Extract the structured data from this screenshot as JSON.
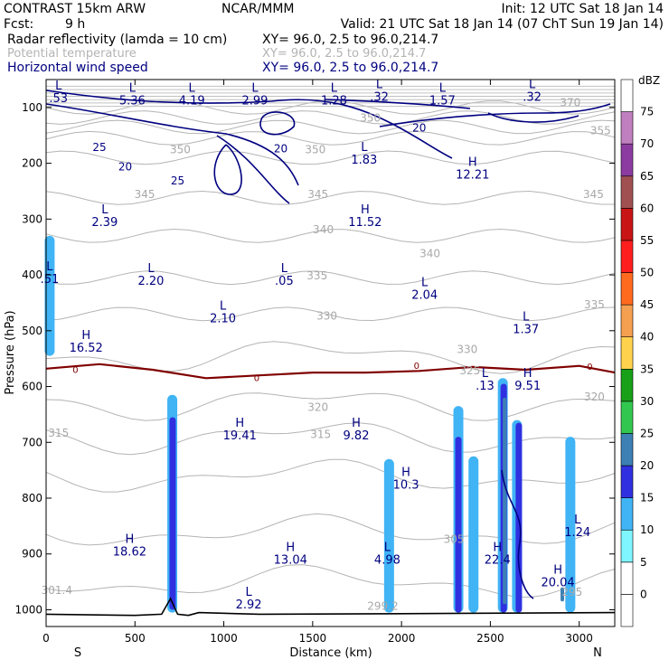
{
  "header": {
    "model": "CONTRAST 15km ARW",
    "org": "NCAR/MMM",
    "init": "Init: 12 UTC Sat 18 Jan 14",
    "fcst_label": "Fcst:",
    "fcst_value": "9 h",
    "valid": "Valid: 21 UTC Sat 18 Jan 14 (07 ChT Sun 19 Jan 14)",
    "fields": [
      {
        "name": "Radar reflectivity (lamda = 10 cm)",
        "xy": "XY=  96.0,  2.5 to  96.0,214.7",
        "color": "#000000"
      },
      {
        "name": "Potential temperature",
        "xy": "XY=  96.0,  2.5 to  96.0,214.7",
        "color": "#b4b4b4"
      },
      {
        "name": "Horizontal wind speed",
        "xy": "XY=  96.0,  2.5 to  96.0,214.7",
        "color": "#000080"
      }
    ]
  },
  "chart_data": {
    "type": "cross-section",
    "xlabel": "Distance (km)",
    "ylabel": "Pressure (hPa)",
    "xlim": [
      0,
      3200
    ],
    "ylim": [
      50,
      1030
    ],
    "x_ticks": [
      0,
      500,
      1000,
      1500,
      2000,
      2500,
      3000
    ],
    "y_ticks": [
      100,
      200,
      300,
      400,
      500,
      600,
      700,
      800,
      900,
      1000
    ],
    "x_end_labels": {
      "left": "S",
      "right": "N"
    },
    "colorbar": {
      "unit": "dBZ",
      "levels": [
        0,
        5,
        10,
        15,
        20,
        25,
        30,
        35,
        40,
        45,
        50,
        55,
        60,
        65,
        70,
        75
      ],
      "colors": [
        "#ffffff",
        "#ffffff",
        "#7ff5ff",
        "#40b4f5",
        "#3030e0",
        "#3c80b4",
        "#32c850",
        "#18a018",
        "#ffd24e",
        "#f5a050",
        "#ff6a1e",
        "#ff1e1e",
        "#c81414",
        "#a05050",
        "#8c3ca0",
        "#c080c0",
        "#ffffff"
      ]
    },
    "theta_labels": [
      {
        "text": "370",
        "x": 2950,
        "p": 98
      },
      {
        "text": "355",
        "x": 3120,
        "p": 148
      },
      {
        "text": "350",
        "x": 755,
        "p": 182
      },
      {
        "text": "350",
        "x": 1515,
        "p": 182
      },
      {
        "text": "350",
        "x": 1825,
        "p": 125
      },
      {
        "text": "345",
        "x": 555,
        "p": 262
      },
      {
        "text": "345",
        "x": 1530,
        "p": 262
      },
      {
        "text": "345",
        "x": 3080,
        "p": 262
      },
      {
        "text": "340",
        "x": 1560,
        "p": 325
      },
      {
        "text": "340",
        "x": 2160,
        "p": 368
      },
      {
        "text": "335",
        "x": 1525,
        "p": 408
      },
      {
        "text": "335",
        "x": 3085,
        "p": 460
      },
      {
        "text": "330",
        "x": 1580,
        "p": 480
      },
      {
        "text": "330",
        "x": 2370,
        "p": 540
      },
      {
        "text": "325",
        "x": 2385,
        "p": 578
      },
      {
        "text": "320",
        "x": 1530,
        "p": 644
      },
      {
        "text": "320",
        "x": 3085,
        "p": 625
      },
      {
        "text": "315",
        "x": 70,
        "p": 690
      },
      {
        "text": "315",
        "x": 1545,
        "p": 692
      },
      {
        "text": "305",
        "x": 2295,
        "p": 880
      },
      {
        "text": "301.4",
        "x": 60,
        "p": 972
      },
      {
        "text": "299.2",
        "x": 1895,
        "p": 1000
      },
      {
        "text": "295",
        "x": 2960,
        "p": 975
      }
    ],
    "wind_labels": [
      {
        "text": "25",
        "x": 300,
        "p": 178
      },
      {
        "text": "20",
        "x": 445,
        "p": 213
      },
      {
        "text": "25",
        "x": 740,
        "p": 238
      },
      {
        "text": "20",
        "x": 1320,
        "p": 180
      },
      {
        "text": "20",
        "x": 2100,
        "p": 143
      },
      {
        "text": "0",
        "x": 165,
        "p": 576
      },
      {
        "text": "0",
        "x": 1185,
        "p": 590
      },
      {
        "text": "0",
        "x": 2085,
        "p": 568
      },
      {
        "text": "0",
        "x": 3060,
        "p": 570
      }
    ],
    "extrema": [
      {
        "type": "L",
        "value": ".53",
        "x": 70,
        "p": 68
      },
      {
        "type": "L",
        "value": "5.36",
        "x": 485,
        "p": 72
      },
      {
        "type": "L",
        "value": "4.19",
        "x": 820,
        "p": 72
      },
      {
        "type": "L",
        "value": "2.99",
        "x": 1175,
        "p": 72
      },
      {
        "type": "L",
        "value": "1.28",
        "x": 1620,
        "p": 72
      },
      {
        "type": "L",
        "value": ".32",
        "x": 1875,
        "p": 65
      },
      {
        "type": "L",
        "value": "1.57",
        "x": 2230,
        "p": 72
      },
      {
        "type": "L",
        "value": ".32",
        "x": 2735,
        "p": 65
      },
      {
        "type": "L",
        "value": "1.83",
        "x": 1790,
        "p": 178
      },
      {
        "type": "H",
        "value": "12.21",
        "x": 2400,
        "p": 205
      },
      {
        "type": "L",
        "value": "2.39",
        "x": 330,
        "p": 290
      },
      {
        "type": "H",
        "value": "11.52",
        "x": 1795,
        "p": 290
      },
      {
        "type": "L",
        "value": ".51",
        "x": 20,
        "p": 392
      },
      {
        "type": "L",
        "value": "2.20",
        "x": 590,
        "p": 395
      },
      {
        "type": "L",
        "value": ".05",
        "x": 1340,
        "p": 395
      },
      {
        "type": "L",
        "value": "2.04",
        "x": 2130,
        "p": 420
      },
      {
        "type": "L",
        "value": "2.10",
        "x": 995,
        "p": 462
      },
      {
        "type": "L",
        "value": "1.37",
        "x": 2700,
        "p": 482
      },
      {
        "type": "H",
        "value": "16.52",
        "x": 225,
        "p": 515
      },
      {
        "type": "L",
        "value": ".13",
        "x": 2470,
        "p": 583
      },
      {
        "type": "H",
        "value": "9.51",
        "x": 2710,
        "p": 583
      },
      {
        "type": "H",
        "value": "19.41",
        "x": 1090,
        "p": 672
      },
      {
        "type": "H",
        "value": "9.82",
        "x": 1745,
        "p": 672
      },
      {
        "type": "H",
        "value": "10.3",
        "x": 2025,
        "p": 760
      },
      {
        "type": "L",
        "value": "1.24",
        "x": 2990,
        "p": 845
      },
      {
        "type": "H",
        "value": "18.62",
        "x": 470,
        "p": 880
      },
      {
        "type": "H",
        "value": "13.04",
        "x": 1375,
        "p": 895
      },
      {
        "type": "L",
        "value": "4.98",
        "x": 1920,
        "p": 895
      },
      {
        "type": "H",
        "value": "22.4",
        "x": 2540,
        "p": 895
      },
      {
        "type": "H",
        "value": "20.04",
        "x": 2880,
        "p": 935
      },
      {
        "type": "L",
        "value": "2.92",
        "x": 1140,
        "p": 975
      }
    ],
    "radar_columns": [
      {
        "x": 20,
        "p_top": 330,
        "p_bottom": 545,
        "dbz": 10
      },
      {
        "x": 710,
        "p_top": 615,
        "p_bottom": 1005,
        "dbz": 10
      },
      {
        "x": 712,
        "p_top": 655,
        "p_bottom": 1000,
        "dbz": 15
      },
      {
        "x": 1930,
        "p_top": 730,
        "p_bottom": 1005,
        "dbz": 10
      },
      {
        "x": 2320,
        "p_top": 635,
        "p_bottom": 1005,
        "dbz": 10
      },
      {
        "x": 2320,
        "p_top": 690,
        "p_bottom": 1005,
        "dbz": 15
      },
      {
        "x": 2405,
        "p_top": 725,
        "p_bottom": 1005,
        "dbz": 10
      },
      {
        "x": 2570,
        "p_top": 585,
        "p_bottom": 1005,
        "dbz": 10
      },
      {
        "x": 2575,
        "p_top": 595,
        "p_bottom": 1005,
        "dbz": 15
      },
      {
        "x": 2580,
        "p_top": 620,
        "p_bottom": 990,
        "dbz": 20
      },
      {
        "x": 2650,
        "p_top": 660,
        "p_bottom": 1005,
        "dbz": 10
      },
      {
        "x": 2660,
        "p_top": 665,
        "p_bottom": 1005,
        "dbz": 15
      },
      {
        "x": 2950,
        "p_top": 690,
        "p_bottom": 1005,
        "dbz": 10
      },
      {
        "x": 2905,
        "p_top": 960,
        "p_bottom": 985,
        "dbz": 20
      }
    ],
    "freezing_level": {
      "label": "0",
      "x": [
        0,
        300,
        600,
        900,
        1200,
        1500,
        1800,
        2100,
        2400,
        2700,
        3000,
        3200
      ],
      "p": [
        568,
        560,
        570,
        585,
        580,
        575,
        575,
        572,
        565,
        570,
        563,
        575
      ]
    },
    "terrain": {
      "x": [
        0,
        500,
        650,
        700,
        740,
        800,
        860,
        1200,
        2000,
        2600,
        3200
      ],
      "p": [
        1008,
        1010,
        1008,
        980,
        1008,
        1010,
        1005,
        1008,
        1007,
        1006,
        1005
      ]
    }
  }
}
